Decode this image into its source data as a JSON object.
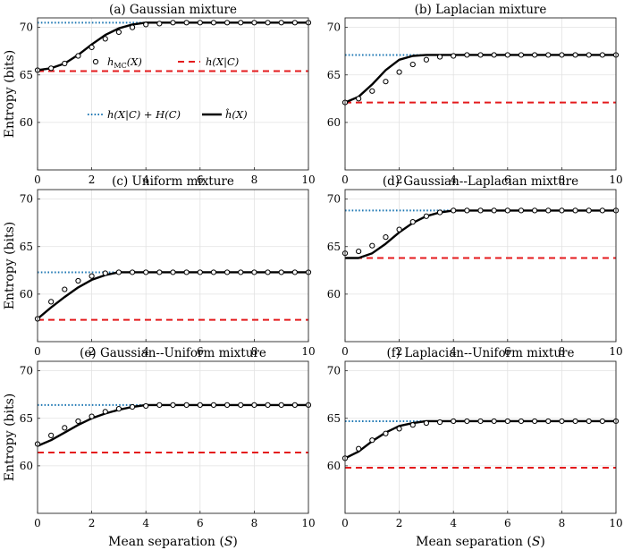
{
  "chart_data": {
    "type": "line",
    "xlabel": "Mean separation (S)",
    "ylabel": "Entropy (bits)",
    "xlim": [
      0,
      10
    ],
    "ylim": [
      55,
      71
    ],
    "xticks": [
      0,
      2,
      4,
      6,
      8,
      10
    ],
    "yticks": [
      60,
      65,
      70
    ],
    "grid": true,
    "legend": {
      "location": "panel (a), center",
      "entries": {
        "mc": {
          "main": "h",
          "sub": "MC",
          "tail": "(X)",
          "marker": "circle"
        },
        "hc": {
          "label": "h(X|C)",
          "style": "dashed red"
        },
        "sum": {
          "label": "h(X|C) + H(C)",
          "style": "dotted blue"
        },
        "est": {
          "label": "ĥ(X)",
          "style": "solid black"
        }
      }
    },
    "colors": {
      "estimate": "#000000",
      "monte_carlo": "#000000",
      "conditional": "#e41a1c",
      "upper": "#1f78b4"
    },
    "panels": [
      {
        "title": "(a) Gaussian mixture",
        "h_cond": 65.4,
        "h_upper": 70.5,
        "mc_x": [
          0,
          0.5,
          1,
          1.5,
          2,
          2.5,
          3,
          3.5,
          4,
          4.5,
          5,
          5.5,
          6,
          6.5,
          7,
          7.5,
          8,
          8.5,
          9,
          9.5,
          10
        ],
        "mc_y": [
          65.5,
          65.7,
          66.2,
          67.0,
          67.9,
          68.8,
          69.5,
          70.0,
          70.3,
          70.4,
          70.5,
          70.5,
          70.5,
          70.5,
          70.5,
          70.5,
          70.5,
          70.5,
          70.5,
          70.5,
          70.5
        ],
        "est_x": [
          0,
          0.5,
          1,
          1.5,
          2,
          2.5,
          3,
          3.5,
          4,
          4.5,
          5,
          6,
          7,
          8,
          9,
          10
        ],
        "est_y": [
          65.5,
          65.7,
          66.2,
          67.1,
          68.2,
          69.2,
          69.9,
          70.3,
          70.5,
          70.5,
          70.5,
          70.5,
          70.5,
          70.5,
          70.5,
          70.5
        ]
      },
      {
        "title": "(b) Laplacian mixture",
        "h_cond": 62.1,
        "h_upper": 67.1,
        "mc_x": [
          0,
          0.5,
          1,
          1.5,
          2,
          2.5,
          3,
          3.5,
          4,
          4.5,
          5,
          5.5,
          6,
          6.5,
          7,
          7.5,
          8,
          8.5,
          9,
          9.5,
          10
        ],
        "mc_y": [
          62.1,
          62.5,
          63.3,
          64.3,
          65.3,
          66.1,
          66.6,
          66.9,
          67.0,
          67.1,
          67.1,
          67.1,
          67.1,
          67.1,
          67.1,
          67.1,
          67.1,
          67.1,
          67.1,
          67.1,
          67.1
        ],
        "est_x": [
          0,
          0.5,
          1,
          1.5,
          2,
          2.5,
          3,
          3.5,
          4,
          5,
          6,
          7,
          8,
          9,
          10
        ],
        "est_y": [
          62.1,
          62.7,
          64.0,
          65.5,
          66.6,
          67.0,
          67.1,
          67.1,
          67.1,
          67.1,
          67.1,
          67.1,
          67.1,
          67.1,
          67.1
        ]
      },
      {
        "title": "(c) Uniform mixture",
        "h_cond": 57.3,
        "h_upper": 62.3,
        "mc_x": [
          0,
          0.5,
          1,
          1.5,
          2,
          2.5,
          3,
          3.5,
          4,
          4.5,
          5,
          5.5,
          6,
          6.5,
          7,
          7.5,
          8,
          8.5,
          9,
          9.5,
          10
        ],
        "mc_y": [
          57.4,
          59.2,
          60.5,
          61.4,
          61.9,
          62.2,
          62.3,
          62.3,
          62.3,
          62.3,
          62.3,
          62.3,
          62.3,
          62.3,
          62.3,
          62.3,
          62.3,
          62.3,
          62.3,
          62.3,
          62.3
        ],
        "est_x": [
          0,
          0.5,
          1,
          1.5,
          2,
          2.5,
          3,
          3.5,
          4,
          5,
          6,
          7,
          8,
          9,
          10
        ],
        "est_y": [
          57.4,
          58.6,
          59.7,
          60.7,
          61.5,
          62.0,
          62.3,
          62.3,
          62.3,
          62.3,
          62.3,
          62.3,
          62.3,
          62.3,
          62.3
        ]
      },
      {
        "title": "(d) Gaussian--Laplacian mixture",
        "h_cond": 63.8,
        "h_upper": 68.8,
        "mc_x": [
          0,
          0.5,
          1,
          1.5,
          2,
          2.5,
          3,
          3.5,
          4,
          4.5,
          5,
          5.5,
          6,
          6.5,
          7,
          7.5,
          8,
          8.5,
          9,
          9.5,
          10
        ],
        "mc_y": [
          64.3,
          64.5,
          65.1,
          66.0,
          66.8,
          67.6,
          68.2,
          68.6,
          68.8,
          68.8,
          68.8,
          68.8,
          68.8,
          68.8,
          68.8,
          68.8,
          68.8,
          68.8,
          68.8,
          68.8,
          68.8
        ],
        "est_x": [
          0,
          0.5,
          1,
          1.5,
          2,
          2.5,
          3,
          3.5,
          4,
          4.5,
          5,
          6,
          7,
          8,
          9,
          10
        ],
        "est_y": [
          63.8,
          63.8,
          64.3,
          65.3,
          66.5,
          67.5,
          68.2,
          68.6,
          68.8,
          68.8,
          68.8,
          68.8,
          68.8,
          68.8,
          68.8,
          68.8
        ]
      },
      {
        "title": "(e) Gaussian--Uniform mixture",
        "h_cond": 61.4,
        "h_upper": 66.4,
        "mc_x": [
          0,
          0.5,
          1,
          1.5,
          2,
          2.5,
          3,
          3.5,
          4,
          4.5,
          5,
          5.5,
          6,
          6.5,
          7,
          7.5,
          8,
          8.5,
          9,
          9.5,
          10
        ],
        "mc_y": [
          62.3,
          63.2,
          64.0,
          64.7,
          65.2,
          65.7,
          66.0,
          66.2,
          66.3,
          66.4,
          66.4,
          66.4,
          66.4,
          66.4,
          66.4,
          66.4,
          66.4,
          66.4,
          66.4,
          66.4,
          66.4
        ],
        "est_x": [
          0,
          0.5,
          1,
          1.5,
          2,
          2.5,
          3,
          3.5,
          4,
          5,
          6,
          7,
          8,
          9,
          10
        ],
        "est_y": [
          62.1,
          62.7,
          63.5,
          64.3,
          65.0,
          65.5,
          65.9,
          66.2,
          66.4,
          66.4,
          66.4,
          66.4,
          66.4,
          66.4,
          66.4
        ]
      },
      {
        "title": "(f) Laplacian--Uniform mixture",
        "h_cond": 59.8,
        "h_upper": 64.7,
        "mc_x": [
          0,
          0.5,
          1,
          1.5,
          2,
          2.5,
          3,
          3.5,
          4,
          4.5,
          5,
          5.5,
          6,
          6.5,
          7,
          7.5,
          8,
          8.5,
          9,
          9.5,
          10
        ],
        "mc_y": [
          60.8,
          61.8,
          62.7,
          63.4,
          63.9,
          64.3,
          64.5,
          64.6,
          64.7,
          64.7,
          64.7,
          64.7,
          64.7,
          64.7,
          64.7,
          64.7,
          64.7,
          64.7,
          64.7,
          64.7,
          64.7
        ],
        "est_x": [
          0,
          0.5,
          1,
          1.5,
          2,
          2.5,
          3,
          3.5,
          4,
          5,
          6,
          7,
          8,
          9,
          10
        ],
        "est_y": [
          60.8,
          61.5,
          62.6,
          63.5,
          64.2,
          64.5,
          64.7,
          64.7,
          64.7,
          64.7,
          64.7,
          64.7,
          64.7,
          64.7,
          64.7
        ]
      }
    ]
  }
}
